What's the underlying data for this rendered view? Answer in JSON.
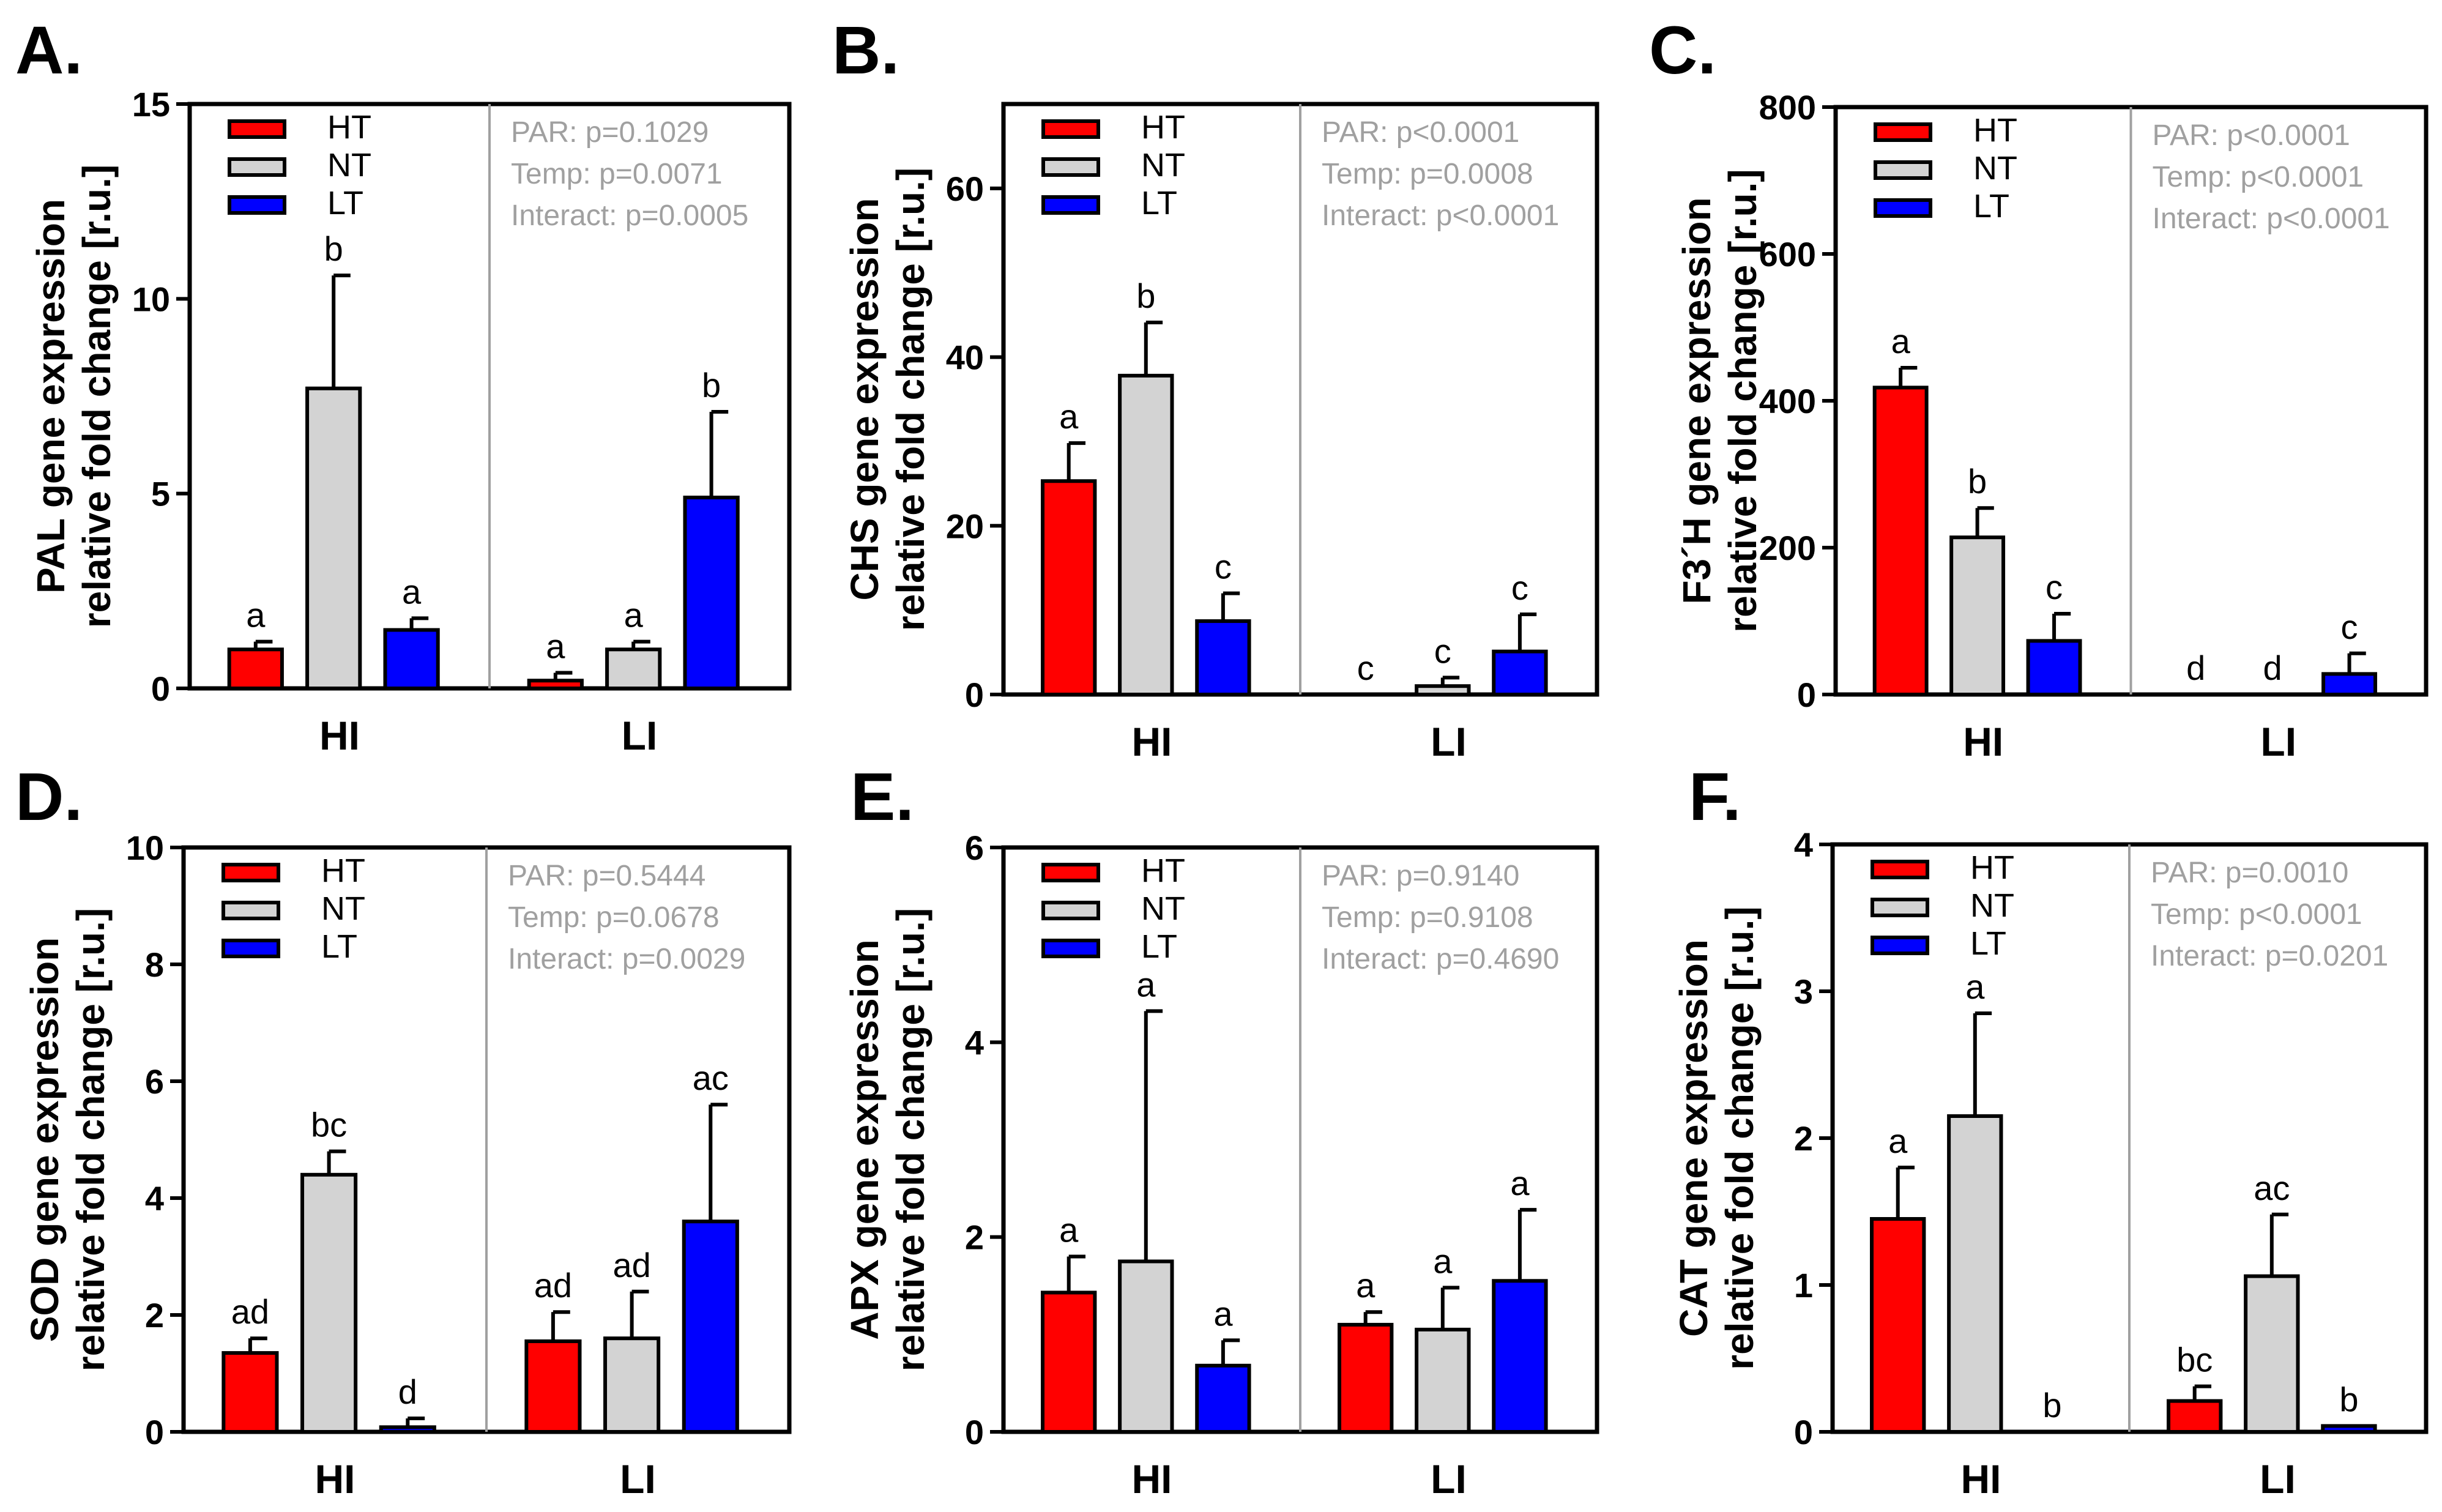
{
  "colors": {
    "HT": "#ff0000",
    "NT": "#d3d3d3",
    "LT": "#0000ff",
    "divider": "#a0a0a0",
    "stats_text": "#a0a0a0"
  },
  "chart_data": [
    {
      "type": "bar",
      "panel": "A.",
      "ylabel_line1": "PAL gene expression",
      "ylabel_line2": "relative fold change [r.u.]",
      "ylim": [
        0,
        15
      ],
      "yticks": [
        "0",
        "5",
        "10",
        "15"
      ],
      "categories": [
        "HI",
        "LI"
      ],
      "legend": [
        "HT",
        "NT",
        "LT"
      ],
      "stats": [
        "PAR: p=0.1029",
        "Temp: p=0.0071",
        "Interact: p=0.0005"
      ],
      "series": [
        {
          "name": "HT",
          "values": [
            1.0,
            0.2
          ],
          "errors": [
            0.2,
            0.2
          ],
          "labels": [
            "a",
            "a"
          ]
        },
        {
          "name": "NT",
          "values": [
            7.7,
            1.0
          ],
          "errors": [
            2.9,
            0.2
          ],
          "labels": [
            "b",
            "a"
          ]
        },
        {
          "name": "LT",
          "values": [
            1.5,
            4.9
          ],
          "errors": [
            0.3,
            2.2
          ],
          "labels": [
            "a",
            "b"
          ]
        }
      ]
    },
    {
      "type": "bar",
      "panel": "B.",
      "ylabel_line1": "CHS gene expression",
      "ylabel_line2": "relative fold change [r.u.]",
      "ylim": [
        0,
        70
      ],
      "yticks": [
        "0",
        "20",
        "40",
        "60"
      ],
      "categories": [
        "HI",
        "LI"
      ],
      "legend": [
        "HT",
        "NT",
        "LT"
      ],
      "stats": [
        "PAR: p<0.0001",
        "Temp: p=0.0008",
        "Interact: p<0.0001"
      ],
      "series": [
        {
          "name": "HT",
          "values": [
            25.3,
            0
          ],
          "errors": [
            4.5,
            0
          ],
          "labels": [
            "a",
            "c"
          ]
        },
        {
          "name": "NT",
          "values": [
            37.8,
            1.0
          ],
          "errors": [
            6.3,
            1.0
          ],
          "labels": [
            "b",
            "c"
          ]
        },
        {
          "name": "LT",
          "values": [
            8.7,
            5.1
          ],
          "errors": [
            3.3,
            4.4
          ],
          "labels": [
            "c",
            "c"
          ]
        }
      ]
    },
    {
      "type": "bar",
      "panel": "C.",
      "ylabel_line1": "F3´H gene expression",
      "ylabel_line2": "relative fold change [r.u.]",
      "ylim": [
        0,
        800
      ],
      "yticks": [
        "0",
        "200",
        "400",
        "600",
        "800"
      ],
      "categories": [
        "HI",
        "LI"
      ],
      "legend": [
        "HT",
        "NT",
        "LT"
      ],
      "stats": [
        "PAR: p<0.0001",
        "Temp: p<0.0001",
        "Interact: p<0.0001"
      ],
      "series": [
        {
          "name": "HT",
          "values": [
            418,
            0
          ],
          "errors": [
            27,
            0
          ],
          "labels": [
            "a",
            "d"
          ]
        },
        {
          "name": "NT",
          "values": [
            214,
            0
          ],
          "errors": [
            40,
            0
          ],
          "labels": [
            "b",
            "d"
          ]
        },
        {
          "name": "LT",
          "values": [
            73,
            28
          ],
          "errors": [
            37,
            28
          ],
          "labels": [
            "c",
            "c"
          ]
        }
      ]
    },
    {
      "type": "bar",
      "panel": "D.",
      "ylabel_line1": "SOD gene expression",
      "ylabel_line2": "relative fold change [r.u.]",
      "ylim": [
        0,
        10
      ],
      "yticks": [
        "0",
        "2",
        "4",
        "6",
        "8",
        "10"
      ],
      "categories": [
        "HI",
        "LI"
      ],
      "legend": [
        "HT",
        "NT",
        "LT"
      ],
      "stats": [
        "PAR: p=0.5444",
        "Temp: p=0.0678",
        "Interact: p=0.0029"
      ],
      "series": [
        {
          "name": "HT",
          "values": [
            1.35,
            1.55
          ],
          "errors": [
            0.25,
            0.5
          ],
          "labels": [
            "ad",
            "ad"
          ]
        },
        {
          "name": "NT",
          "values": [
            4.4,
            1.6
          ],
          "errors": [
            0.4,
            0.8
          ],
          "labels": [
            "bc",
            "ad"
          ]
        },
        {
          "name": "LT",
          "values": [
            0.08,
            3.6
          ],
          "errors": [
            0.15,
            2.0
          ],
          "labels": [
            "d",
            "ac"
          ]
        }
      ]
    },
    {
      "type": "bar",
      "panel": "E.",
      "ylabel_line1": "APX gene expression",
      "ylabel_line2": "relative fold change [r.u.]",
      "ylim": [
        0,
        6
      ],
      "yticks": [
        "0",
        "2",
        "4",
        "6"
      ],
      "categories": [
        "HI",
        "LI"
      ],
      "legend": [
        "HT",
        "NT",
        "LT"
      ],
      "stats": [
        "PAR: p=0.9140",
        "Temp: p=0.9108",
        "Interact: p=0.4690"
      ],
      "series": [
        {
          "name": "HT",
          "values": [
            1.43,
            1.1
          ],
          "errors": [
            0.37,
            0.13
          ],
          "labels": [
            "a",
            "a"
          ]
        },
        {
          "name": "NT",
          "values": [
            1.75,
            1.05
          ],
          "errors": [
            2.57,
            0.43
          ],
          "labels": [
            "a",
            "a"
          ]
        },
        {
          "name": "LT",
          "values": [
            0.68,
            1.55
          ],
          "errors": [
            0.26,
            0.73
          ],
          "labels": [
            "a",
            "a"
          ]
        }
      ]
    },
    {
      "type": "bar",
      "panel": "F.",
      "ylabel_line1": "CAT gene expression",
      "ylabel_line2": "relative fold change [r.u.]",
      "ylim": [
        0,
        4
      ],
      "yticks": [
        "0",
        "1",
        "2",
        "3",
        "4"
      ],
      "categories": [
        "HI",
        "LI"
      ],
      "legend": [
        "HT",
        "NT",
        "LT"
      ],
      "stats": [
        "PAR: p=0.0010",
        "Temp: p<0.0001",
        "Interact: p=0.0201"
      ],
      "series": [
        {
          "name": "HT",
          "values": [
            1.45,
            0.21
          ],
          "errors": [
            0.35,
            0.1
          ],
          "labels": [
            "a",
            "bc"
          ]
        },
        {
          "name": "NT",
          "values": [
            2.15,
            1.06
          ],
          "errors": [
            0.7,
            0.42
          ],
          "labels": [
            "a",
            "ac"
          ]
        },
        {
          "name": "LT",
          "values": [
            0,
            0.04
          ],
          "errors": [
            0,
            0
          ],
          "labels": [
            "b",
            "b"
          ]
        }
      ]
    }
  ]
}
